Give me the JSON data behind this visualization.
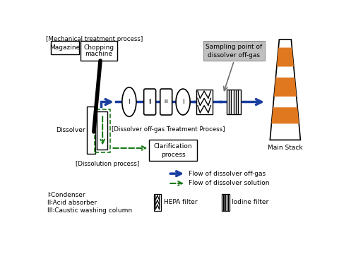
{
  "bg_color": "#ffffff",
  "blue": "#1a3fa0",
  "green": "#1a7a1a",
  "black": "#000000",
  "orange": "#e07820",
  "gray_box": "#b0b0b0",
  "gray_arrow": "#808080",
  "legend_blue": "Flow of dissolver off-gas",
  "legend_green": "Flow of dissolver solution",
  "roman_labels": [
    "I",
    "II",
    "III",
    "I"
  ],
  "leg1": "I∶Condenser",
  "leg2": "II∶Acid absorber",
  "leg3": "III∶Caustic washing column",
  "hepa_label": "HEPA filter",
  "iodine_label": "Iodine filter",
  "main_stack_label": "Main Stack",
  "mech_label": "[Mechanical treatment process]",
  "magazine_label": "Magazine",
  "chopping_label1": "Chopping",
  "chopping_label2": "machine",
  "dissolver_label": "Dissolver",
  "dissolution_label": "[Dissolution process]",
  "treatment_label": "[Dissolver off-gas Treatment Process]",
  "clarif_label1": "Clarification",
  "clarif_label2": "process",
  "sampling_label1": "Sampling point of",
  "sampling_label2": "dissolver off-gas"
}
